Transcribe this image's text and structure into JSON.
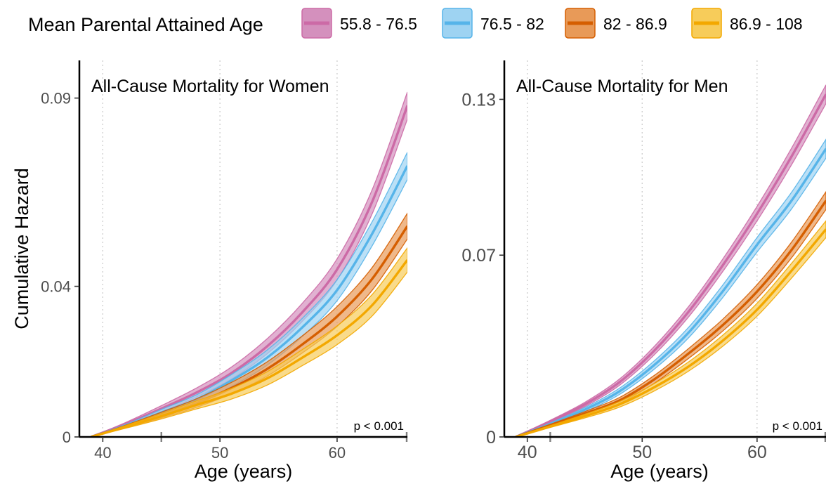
{
  "legend": {
    "title": "Mean Parental Attained Age",
    "items": [
      {
        "label": "55.8 - 76.5",
        "fill": "#d490bd",
        "line": "#cc6aa6"
      },
      {
        "label": "76.5 - 82",
        "fill": "#9ed3f2",
        "line": "#56b4e9"
      },
      {
        "label": "82 - 86.9",
        "fill": "#e89a58",
        "line": "#d55e00"
      },
      {
        "label": "86.9 - 108",
        "fill": "#f7cc5a",
        "line": "#f3a800"
      }
    ]
  },
  "chart_data": [
    {
      "type": "line",
      "title": "All-Cause Mortality for Women",
      "xlabel": "Age (years)",
      "ylabel": "Cumulative Hazard",
      "xlim": [
        38,
        66
      ],
      "ylim": [
        0,
        0.1
      ],
      "xticks": [
        40,
        50,
        60
      ],
      "yticks": [
        0,
        0.04,
        0.09
      ],
      "ytick_labels": [
        "0",
        "0.04",
        "0.09"
      ],
      "grid": "vertical-dotted",
      "annotation": {
        "text": "p < 0.001",
        "x_start": 45,
        "x_end": 66
      },
      "x": [
        39,
        42,
        45,
        48,
        51,
        54,
        57,
        60,
        63,
        66
      ],
      "series": [
        {
          "name": "55.8 - 76.5",
          "values": [
            0,
            0.0035,
            0.0075,
            0.0118,
            0.017,
            0.024,
            0.033,
            0.0445,
            0.0625,
            0.088
          ],
          "band": 0.0036
        },
        {
          "name": "76.5 - 82",
          "values": [
            0,
            0.003,
            0.0065,
            0.01,
            0.015,
            0.021,
            0.029,
            0.039,
            0.054,
            0.072
          ],
          "band": 0.0036
        },
        {
          "name": "82 - 86.9",
          "values": [
            0,
            0.0028,
            0.0058,
            0.009,
            0.013,
            0.018,
            0.0245,
            0.032,
            0.042,
            0.056
          ],
          "band": 0.0034
        },
        {
          "name": "86.9 - 108",
          "values": [
            0,
            0.0027,
            0.0055,
            0.0085,
            0.0115,
            0.0155,
            0.021,
            0.027,
            0.035,
            0.047
          ],
          "band": 0.0032
        }
      ]
    },
    {
      "type": "line",
      "title": "All-Cause Mortality for Men",
      "xlabel": "Age (years)",
      "ylabel": "",
      "xlim": [
        38,
        66
      ],
      "ylim": [
        0,
        0.145
      ],
      "xticks": [
        40,
        50,
        60
      ],
      "yticks": [
        0,
        0.07,
        0.13
      ],
      "ytick_labels": [
        "0",
        "0.07",
        "0.13"
      ],
      "grid": "vertical-dotted",
      "annotation": {
        "text": "p < 0.001",
        "x_start": 42,
        "x_end": 66
      },
      "x": [
        39,
        42,
        45,
        48,
        51,
        54,
        57,
        60,
        63,
        66
      ],
      "series": [
        {
          "name": "55.8 - 76.5",
          "values": [
            0,
            0.006,
            0.0125,
            0.021,
            0.033,
            0.048,
            0.066,
            0.086,
            0.108,
            0.132
          ],
          "band": 0.0036
        },
        {
          "name": "76.5 - 82",
          "values": [
            0,
            0.005,
            0.0105,
            0.0175,
            0.0275,
            0.04,
            0.056,
            0.074,
            0.091,
            0.111
          ],
          "band": 0.0036
        },
        {
          "name": "82 - 86.9",
          "values": [
            0,
            0.0045,
            0.009,
            0.014,
            0.022,
            0.032,
            0.043,
            0.056,
            0.072,
            0.091
          ],
          "band": 0.0034
        },
        {
          "name": "86.9 - 108",
          "values": [
            0,
            0.004,
            0.008,
            0.0125,
            0.019,
            0.027,
            0.037,
            0.049,
            0.064,
            0.08
          ],
          "band": 0.0032
        }
      ]
    }
  ]
}
